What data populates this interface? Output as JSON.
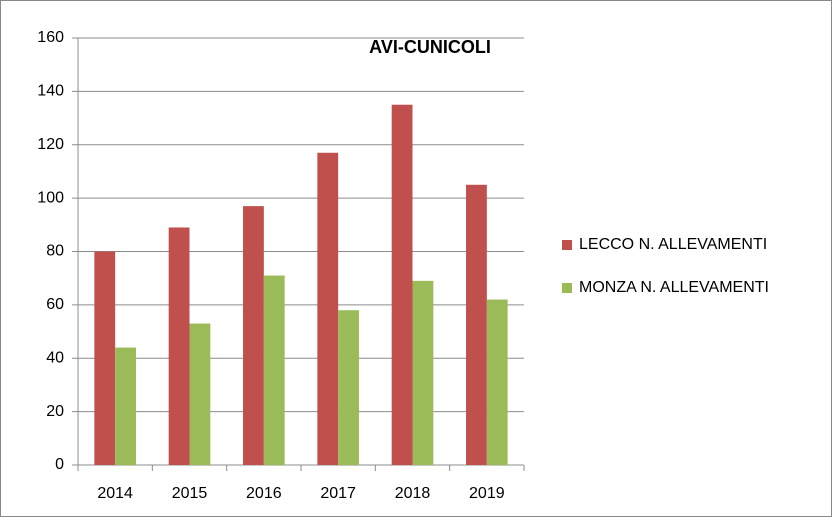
{
  "chart_data": {
    "type": "bar",
    "title": "AVI-CUNICOLI",
    "categories": [
      "2014",
      "2015",
      "2016",
      "2017",
      "2018",
      "2019"
    ],
    "series": [
      {
        "name": "LECCO N. ALLEVAMENTI",
        "color": "#c0504d",
        "values": [
          80,
          89,
          97,
          117,
          135,
          105
        ]
      },
      {
        "name": "MONZA N. ALLEVAMENTI",
        "color": "#9bbb59",
        "values": [
          44,
          53,
          71,
          58,
          69,
          62
        ]
      }
    ],
    "ylim": [
      0,
      160
    ],
    "yticks": [
      0,
      20,
      40,
      60,
      80,
      100,
      120,
      140,
      160
    ],
    "grid": true,
    "legend": "right"
  }
}
